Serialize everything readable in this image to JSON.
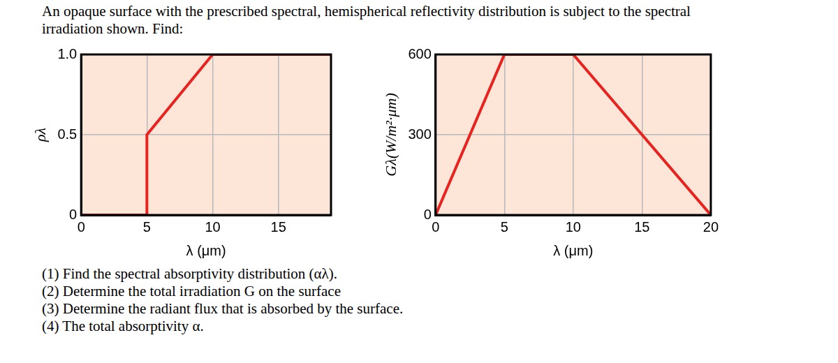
{
  "document": {
    "intro": "An opaque surface with the prescribed spectral, hemispherical reflectivity distribution is subject to the spectral irradiation shown. Find:",
    "questions": [
      "(1) Find the spectral absorptivity distribution (αλ).",
      "(2) Determine the total irradiation G on the surface",
      "(3) Determine the radiant flux that is absorbed by the surface.",
      "(4) The total absorptivity α."
    ]
  },
  "chart_data": [
    {
      "type": "line",
      "x_label": "λ (μm)",
      "y_label": "ρλ",
      "series": [
        {
          "color": "#e8231f",
          "line_style": "solid",
          "x": [
            0,
            5,
            5,
            10,
            19
          ],
          "values": [
            0,
            0,
            0.5,
            1.0,
            1.0
          ]
        }
      ],
      "xlim": [
        0,
        19
      ],
      "xticks": [
        0,
        5,
        10,
        15
      ],
      "ylim": [
        0,
        1
      ],
      "yticks": [
        0,
        0.5,
        {
          "value": 1,
          "label": "1.0"
        }
      ],
      "grid": true
    },
    {
      "type": "line",
      "x_label": "λ (μm)",
      "y_label": "Gλ(W/m²·μm)",
      "series": [
        {
          "color": "#e8231f",
          "line_style": "solid",
          "x": [
            0,
            5,
            10,
            20
          ],
          "values": [
            0,
            600,
            600,
            0
          ]
        }
      ],
      "xlim": [
        0,
        20
      ],
      "xticks": [
        0,
        5,
        10,
        15,
        20
      ],
      "ylim": [
        0,
        600
      ],
      "yticks": [
        0,
        300,
        600
      ],
      "grid": true
    }
  ]
}
